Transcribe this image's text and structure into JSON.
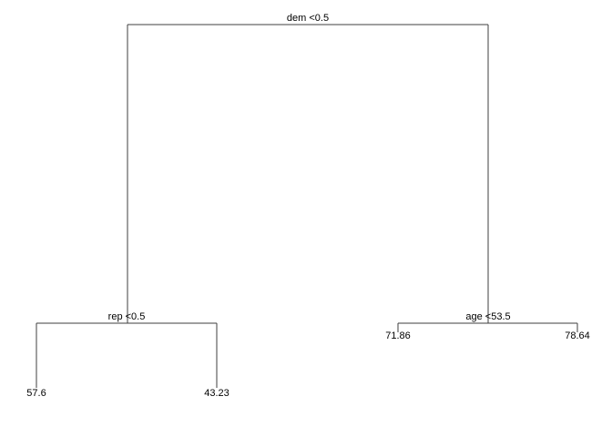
{
  "tree": {
    "root_split": "dem <0.5",
    "left_split": "rep <0.5",
    "right_split": "age <53.5",
    "leaves": [
      "57.6",
      "43.23",
      "71.86",
      "78.64"
    ]
  },
  "colors": {
    "edge": "#3f3f3f",
    "text": "#000000",
    "background": "#ffffff"
  }
}
